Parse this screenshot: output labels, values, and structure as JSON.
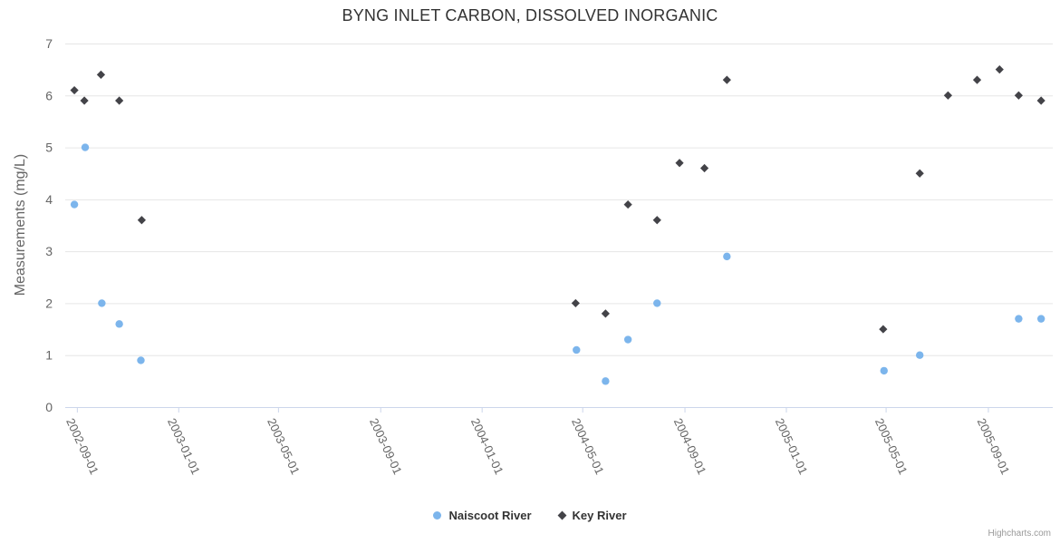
{
  "credits": "Highcharts.com",
  "colors": {
    "naiscoot": "#7cb5ec",
    "key": "#434348",
    "gridline": "#e6e6e6",
    "axis_line": "#ccd6eb",
    "axis_label": "#666666",
    "title_text": "#333333"
  },
  "chart_data": {
    "type": "scatter",
    "title": "BYNG INLET CARBON, DISSOLVED INORGANIC",
    "xlabel": "",
    "ylabel": "Measurements (mg/L)",
    "ylim": [
      0,
      7
    ],
    "yticks": [
      0,
      1,
      2,
      3,
      4,
      5,
      6,
      7
    ],
    "xlim": [
      "2002-08-18",
      "2005-11-18"
    ],
    "xticks": [
      "2002-09-01",
      "2003-01-01",
      "2003-05-01",
      "2003-09-01",
      "2004-01-01",
      "2004-05-01",
      "2004-09-01",
      "2005-01-01",
      "2005-05-01",
      "2005-09-01"
    ],
    "grid": "horizontal",
    "legend_position": "bottom",
    "series": [
      {
        "name": "Naiscoot River",
        "marker": "circle",
        "color": "#7cb5ec",
        "points": [
          [
            "2002-08-29",
            3.9
          ],
          [
            "2002-09-11",
            5.0
          ],
          [
            "2002-10-01",
            2.0
          ],
          [
            "2002-10-22",
            1.6
          ],
          [
            "2002-11-17",
            0.9
          ],
          [
            "2004-04-24",
            1.1
          ],
          [
            "2004-05-29",
            0.5
          ],
          [
            "2004-06-25",
            1.3
          ],
          [
            "2004-07-30",
            2.0
          ],
          [
            "2004-10-22",
            2.9
          ],
          [
            "2005-04-29",
            0.7
          ],
          [
            "2005-06-11",
            1.0
          ],
          [
            "2005-10-08",
            1.7
          ],
          [
            "2005-11-04",
            1.7
          ]
        ]
      },
      {
        "name": "Key River",
        "marker": "diamond",
        "color": "#434348",
        "points": [
          [
            "2002-08-29",
            6.1
          ],
          [
            "2002-09-10",
            5.9
          ],
          [
            "2002-09-30",
            6.4
          ],
          [
            "2002-10-22",
            5.9
          ],
          [
            "2002-11-18",
            3.6
          ],
          [
            "2004-04-23",
            2.0
          ],
          [
            "2004-05-29",
            1.8
          ],
          [
            "2004-06-25",
            3.9
          ],
          [
            "2004-07-30",
            3.6
          ],
          [
            "2004-08-26",
            4.7
          ],
          [
            "2004-09-25",
            4.6
          ],
          [
            "2004-10-22",
            6.3
          ],
          [
            "2005-04-28",
            1.5
          ],
          [
            "2005-06-11",
            4.5
          ],
          [
            "2005-07-15",
            6.0
          ],
          [
            "2005-08-19",
            6.3
          ],
          [
            "2005-09-15",
            6.5
          ],
          [
            "2005-10-08",
            6.0
          ],
          [
            "2005-11-04",
            5.9
          ]
        ]
      }
    ]
  }
}
